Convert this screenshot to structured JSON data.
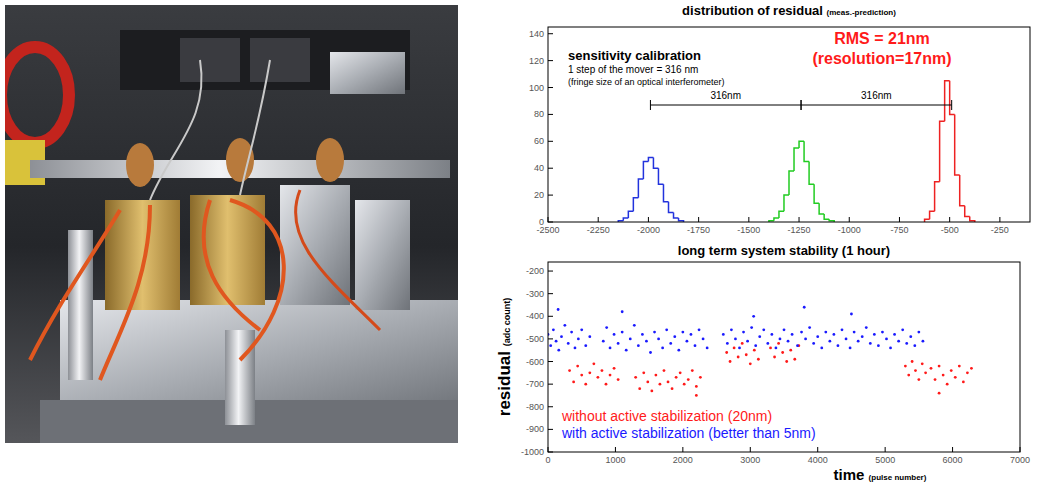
{
  "chart_data": [
    {
      "type": "histogram",
      "title": "distribution of residual",
      "subtitle": "(meas.-prediction)",
      "xlim": [
        -2500,
        -100
      ],
      "xticks": [
        -2500,
        -2250,
        -2000,
        -1750,
        -1500,
        -1250,
        -1000,
        -750,
        -500,
        -250
      ],
      "ylim": [
        0,
        145
      ],
      "yticks": [
        0,
        20,
        40,
        60,
        80,
        100,
        120,
        140
      ],
      "grid": false,
      "series": [
        {
          "color": "#2233dd",
          "bins": [
            -2150,
            -2125,
            -2100,
            -2075,
            -2050,
            -2025,
            -2000,
            -1975,
            -1950,
            -1925,
            -1900,
            -1875,
            -1850,
            -1825
          ],
          "values": [
            1,
            3,
            8,
            18,
            32,
            45,
            48,
            40,
            28,
            15,
            7,
            3,
            1
          ]
        },
        {
          "color": "#22cc22",
          "bins": [
            -1400,
            -1375,
            -1350,
            -1325,
            -1300,
            -1275,
            -1250,
            -1225,
            -1200,
            -1175,
            -1150,
            -1125,
            -1100,
            -1075
          ],
          "values": [
            1,
            3,
            8,
            20,
            38,
            55,
            60,
            45,
            28,
            14,
            6,
            2,
            1
          ]
        },
        {
          "color": "#ee2222",
          "bins": [
            -625,
            -600,
            -575,
            -550,
            -525,
            -500,
            -475,
            -450,
            -425,
            -400,
            -375
          ],
          "values": [
            2,
            8,
            30,
            75,
            105,
            80,
            35,
            12,
            4,
            1
          ]
        }
      ],
      "annotations": [
        {
          "text": "sensitivity calibration"
        },
        {
          "text": "1 step of the mover = 316 nm"
        },
        {
          "text": "(fringe size of an optical interferometer)"
        },
        {
          "text": "RMS = 21nm",
          "color": "#ff1a1a"
        },
        {
          "text": "(resolution=17nm)",
          "color": "#ff1a1a"
        }
      ],
      "spans": [
        {
          "from": -1990,
          "to": -1240,
          "label": "316nm"
        },
        {
          "from": -1240,
          "to": -490,
          "label": "316nm"
        }
      ]
    },
    {
      "type": "scatter",
      "title": "long term system stability (1 hour)",
      "xlabel": "time",
      "xlabel_unit": "(pulse number)",
      "ylabel": "residual",
      "ylabel_unit": "(adc count)",
      "xlim": [
        0,
        7000
      ],
      "xticks": [
        0,
        1000,
        2000,
        3000,
        4000,
        5000,
        6000,
        7000
      ],
      "ylim": [
        -1000,
        -160
      ],
      "yticks": [
        -1000,
        -900,
        -800,
        -700,
        -600,
        -500,
        -400,
        -300,
        -200
      ],
      "grid": false,
      "legend": "lower left",
      "marker": "dot",
      "series": [
        {
          "name": "without active stabilization (20nm)",
          "color": "#ff1a1a",
          "x": [
            320,
            380,
            440,
            500,
            560,
            620,
            680,
            740,
            800,
            860,
            920,
            980,
            1040,
            1300,
            1360,
            1420,
            1480,
            1540,
            1600,
            1660,
            1720,
            1780,
            1840,
            1900,
            1960,
            2020,
            2080,
            2140,
            2200,
            2260,
            2650,
            2700,
            2760,
            2820,
            2880,
            2940,
            3000,
            3060,
            3120,
            3300,
            3360,
            3420,
            3480,
            3540,
            3600,
            3660,
            3720,
            5300,
            5350,
            5400,
            5450,
            5500,
            5550,
            5600,
            5680,
            5740,
            5800,
            5860,
            5920,
            5980,
            6040,
            6100,
            6160,
            6220,
            6280,
            2200,
            5800
          ],
          "values": [
            -640,
            -690,
            -620,
            -660,
            -700,
            -650,
            -610,
            -670,
            -640,
            -700,
            -660,
            -630,
            -680,
            -670,
            -720,
            -650,
            -690,
            -730,
            -660,
            -700,
            -640,
            -690,
            -720,
            -670,
            -650,
            -700,
            -680,
            -640,
            -710,
            -670,
            -560,
            -600,
            -540,
            -580,
            -520,
            -570,
            -610,
            -550,
            -590,
            -540,
            -580,
            -520,
            -560,
            -600,
            -550,
            -590,
            -530,
            -620,
            -660,
            -600,
            -640,
            -680,
            -610,
            -650,
            -630,
            -680,
            -620,
            -660,
            -700,
            -640,
            -670,
            -620,
            -690,
            -650,
            -630,
            -750,
            -740
          ]
        },
        {
          "name": "with active stabilization (better than 5nm)",
          "color": "#1a1aff",
          "x": [
            0,
            40,
            80,
            120,
            160,
            200,
            250,
            300,
            350,
            400,
            450,
            500,
            560,
            620,
            820,
            870,
            920,
            980,
            1040,
            1100,
            1160,
            1220,
            1280,
            1340,
            1400,
            1460,
            1520,
            1580,
            1640,
            1700,
            1760,
            1820,
            1880,
            1940,
            2000,
            2060,
            2120,
            2180,
            2240,
            2300,
            2360,
            2600,
            2660,
            2720,
            2780,
            2840,
            2900,
            2960,
            3020,
            3080,
            3140,
            3200,
            3260,
            3320,
            3380,
            3440,
            3500,
            3560,
            3620,
            3700,
            3760,
            3820,
            3880,
            3940,
            4000,
            4060,
            4120,
            4180,
            4240,
            4300,
            4360,
            4420,
            4480,
            4540,
            4600,
            4660,
            4720,
            4780,
            4840,
            4900,
            4960,
            5020,
            5080,
            5140,
            5200,
            5260,
            5320,
            5380,
            5440,
            5500,
            5560,
            1100,
            3050,
            3800,
            4500,
            150
          ],
          "values": [
            -480,
            -530,
            -460,
            -510,
            -550,
            -490,
            -440,
            -520,
            -470,
            -540,
            -500,
            -460,
            -530,
            -490,
            -510,
            -450,
            -540,
            -480,
            -520,
            -470,
            -550,
            -500,
            -440,
            -530,
            -480,
            -510,
            -560,
            -470,
            -500,
            -540,
            -460,
            -520,
            -490,
            -550,
            -470,
            -510,
            -480,
            -530,
            -460,
            -500,
            -540,
            -480,
            -520,
            -460,
            -500,
            -540,
            -470,
            -510,
            -450,
            -530,
            -490,
            -460,
            -520,
            -480,
            -540,
            -500,
            -460,
            -510,
            -480,
            -530,
            -470,
            -500,
            -450,
            -520,
            -490,
            -540,
            -470,
            -510,
            -480,
            -530,
            -460,
            -500,
            -540,
            -470,
            -510,
            -490,
            -450,
            -520,
            -480,
            -530,
            -470,
            -500,
            -540,
            -480,
            -510,
            -460,
            -520,
            -490,
            -530,
            -470,
            -510,
            -380,
            -400,
            -360,
            -390,
            -370
          ]
        }
      ]
    }
  ]
}
